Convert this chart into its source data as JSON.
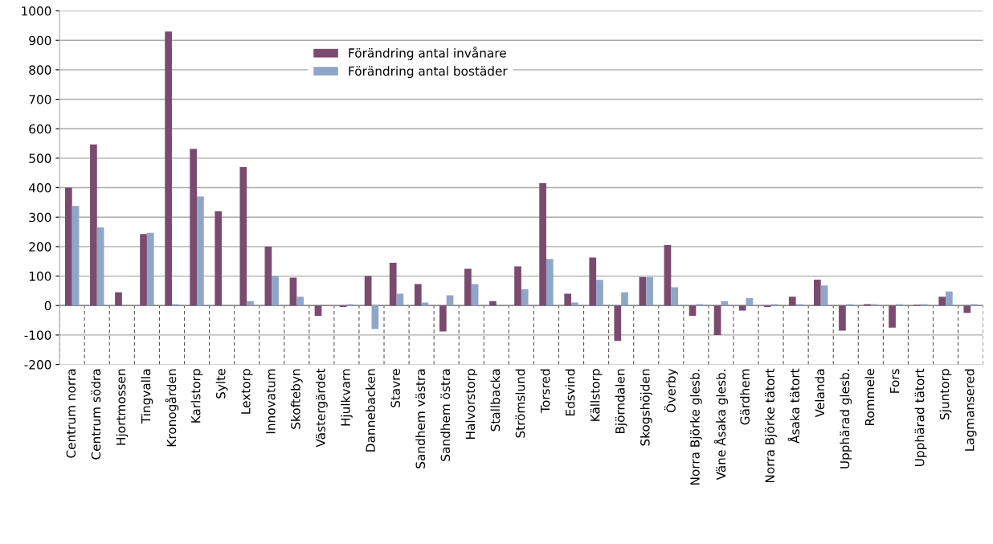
{
  "chart_data": {
    "type": "bar",
    "categories": [
      "Centrum norra",
      "Centrum södra",
      "Hjortmossen",
      "Tingvalla",
      "Kronogården",
      "Karlstorp",
      "Sylte",
      "Lextorp",
      "Innovatum",
      "Skoftebyn",
      "Västergärdet",
      "Hjulkvarn",
      "Dannebacken",
      "Stavre",
      "Sandhem västra",
      "Sandhem östra",
      "Halvorstorp",
      "Stallbacka",
      "Strömslund",
      "Torsred",
      "Edsvind",
      "Källstorp",
      "Björndalen",
      "Skogshöjden",
      "Överby",
      "Norra Björke glesb.",
      "Väne Åsaka glesb.",
      "Gärdhem",
      "Norra Björke tätort",
      "Åsaka tätort",
      "Velanda",
      "Upphärad glesb.",
      "Rommele",
      "Fors",
      "Upphärad tätort",
      "Sjuntorp",
      "Lagmansered"
    ],
    "series": [
      {
        "name": "Förändring antal invånare",
        "color": "#7b4a6f",
        "values": [
          400,
          547,
          45,
          243,
          930,
          532,
          320,
          470,
          200,
          95,
          -35,
          -5,
          100,
          145,
          73,
          -88,
          125,
          15,
          133,
          415,
          40,
          163,
          -120,
          97,
          205,
          -35,
          -100,
          -17,
          -5,
          30,
          88,
          -85,
          5,
          -75,
          3,
          30,
          -25
        ]
      },
      {
        "name": "Förändring antal bostäder",
        "color": "#8fa6c8",
        "values": [
          338,
          265,
          0,
          247,
          5,
          370,
          0,
          15,
          100,
          30,
          0,
          5,
          -80,
          40,
          10,
          35,
          73,
          0,
          55,
          158,
          10,
          87,
          45,
          97,
          62,
          5,
          15,
          25,
          5,
          5,
          68,
          5,
          5,
          5,
          5,
          48,
          5
        ]
      }
    ],
    "ylim": [
      -200,
      1000
    ],
    "yticks": [
      -200,
      -100,
      0,
      100,
      200,
      300,
      400,
      500,
      600,
      700,
      800,
      900,
      1000
    ],
    "grid": "y",
    "legend": "top"
  }
}
